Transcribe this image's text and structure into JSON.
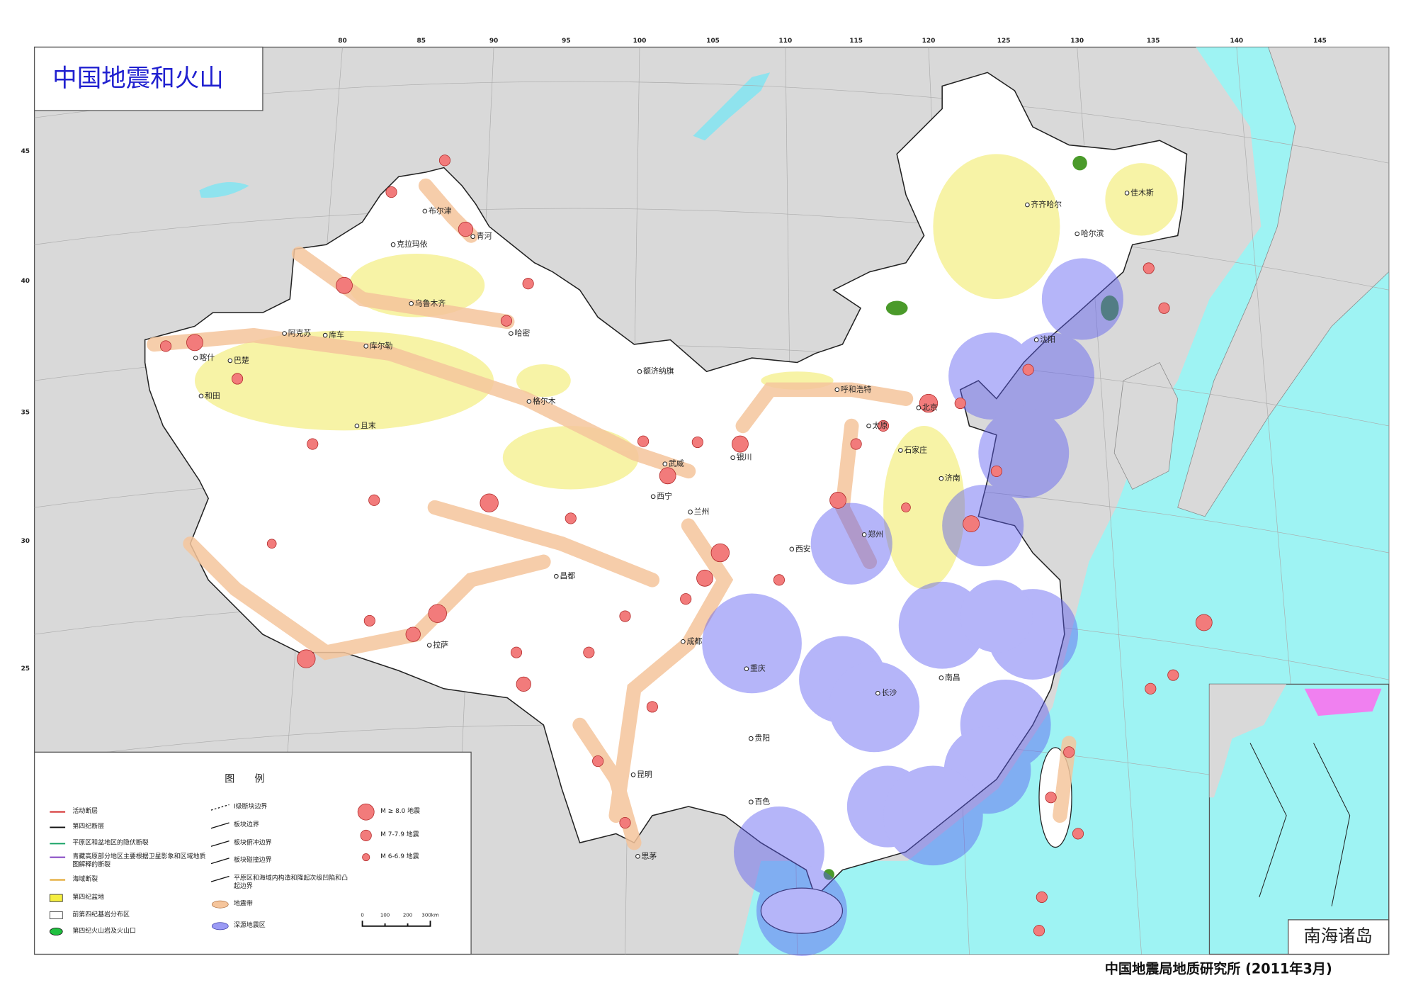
{
  "title": "中国地震和火山",
  "graticule": {
    "longitudes": [
      80,
      85,
      90,
      95,
      100,
      105,
      110,
      115,
      120,
      125,
      130,
      135,
      140,
      145
    ],
    "latitudes": [
      45,
      40,
      35,
      30,
      25
    ]
  },
  "cities": [
    "布尔津",
    "青河",
    "克拉玛依",
    "乌鲁木齐",
    "哈密",
    "库车",
    "阿克苏",
    "库尔勒",
    "喀什",
    "巴楚",
    "和田",
    "且末",
    "格尔木",
    "额济纳旗",
    "武威",
    "西宁",
    "兰州",
    "银川",
    "呼和浩特",
    "北京",
    "石家庄",
    "济南",
    "太原",
    "西安",
    "郑州",
    "拉萨",
    "昌都",
    "成都",
    "重庆",
    "长沙",
    "南昌",
    "贵阳",
    "百色",
    "昆明",
    "思茅",
    "齐齐哈尔",
    "佳木斯",
    "哈尔滨",
    "沈阳"
  ],
  "legend": {
    "title": "图　　例",
    "lines": [
      "活动断层",
      "第四纪断层",
      "平原区和盆地区的隐伏断裂",
      "青藏高原部分地区主要根据卫星影象和区域地质图解释的断裂",
      "海域断裂",
      "第四纪盆地",
      "前第四纪基岩分布区",
      "第四纪火山岩及火山口"
    ],
    "boundaries": [
      "I级断块边界",
      "板块边界",
      "板块俯冲边界",
      "板块碰撞边界",
      "平原区和海域内构造和隆起次级凹陷和凸起边界",
      "地震带",
      "深源地震区"
    ],
    "magnitudes": [
      "M ≥ 8.0 地震",
      "M 7-7.9 地震",
      "M 6-6.9 地震"
    ],
    "scale": [
      "0",
      "100",
      "200",
      "300km"
    ]
  },
  "inset_label": "南海诸岛",
  "credit": "中国地震局地质研究所 (2011年3月)"
}
